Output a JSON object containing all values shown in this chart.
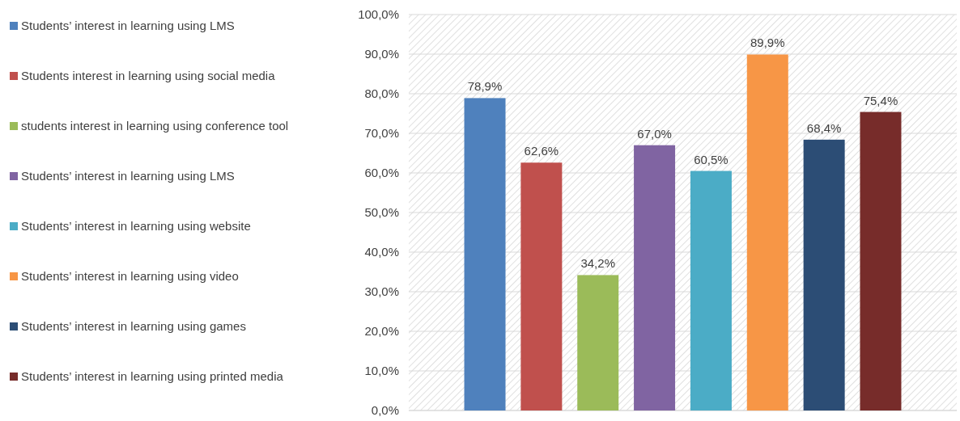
{
  "chart_data": {
    "type": "bar",
    "categories": [
      null
    ],
    "series": [
      {
        "name": "Students’ interest in learning using LMS",
        "color": "#4f81bd",
        "values": [
          78.9
        ]
      },
      {
        "name": "Students interest in learning using social media",
        "color": "#c0504d",
        "values": [
          62.6
        ]
      },
      {
        "name": "students interest in learning using conference tool",
        "color": "#9bbb59",
        "values": [
          34.2
        ]
      },
      {
        "name": "Students’ interest in learning using LMS",
        "color": "#8064a2",
        "values": [
          67.0
        ]
      },
      {
        "name": "Students’ interest in learning using website",
        "color": "#4bacc6",
        "values": [
          60.5
        ]
      },
      {
        "name": "Students’ interest in learning using video",
        "color": "#f79646",
        "values": [
          89.9
        ]
      },
      {
        "name": "Students’ interest in learning using games",
        "color": "#2c4d75",
        "values": [
          68.4
        ]
      },
      {
        "name": "Students’ interest in learning using printed media",
        "color": "#772c2a",
        "values": [
          75.4
        ]
      }
    ],
    "value_labels": [
      [
        "78,9%"
      ],
      [
        "62,6%"
      ],
      [
        "34,2%"
      ],
      [
        "67,0%"
      ],
      [
        "60,5%"
      ],
      [
        "89,9%"
      ],
      [
        "68,4%"
      ],
      [
        "75,4%"
      ]
    ],
    "ylim": [
      0,
      100
    ],
    "yticks": [
      {
        "value": 0,
        "label": "0,0%"
      },
      {
        "value": 10,
        "label": "10,0%"
      },
      {
        "value": 20,
        "label": "20,0%"
      },
      {
        "value": 30,
        "label": "30,0%"
      },
      {
        "value": 40,
        "label": "40,0%"
      },
      {
        "value": 50,
        "label": "50,0%"
      },
      {
        "value": 60,
        "label": "60,0%"
      },
      {
        "value": 70,
        "label": "70,0%"
      },
      {
        "value": 80,
        "label": "80,0%"
      },
      {
        "value": 90,
        "label": "90,0%"
      },
      {
        "value": 100,
        "label": "100,0%"
      }
    ],
    "grid": "y",
    "legend": "left"
  }
}
